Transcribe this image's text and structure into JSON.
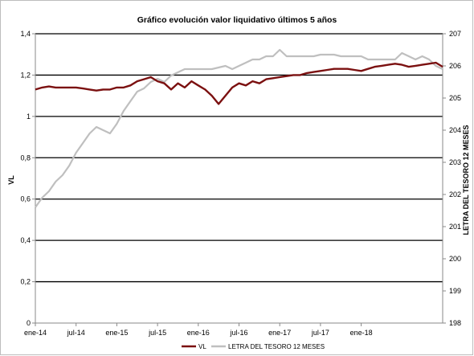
{
  "chart_data": {
    "type": "line",
    "title": "Gráfico evolución valor liquidativo últimos 5 años",
    "ylabel_left": "VL",
    "ylabel_right": "LETRA DEL TESORO 12 MESES",
    "x_tick_labels": [
      "ene-14",
      "jul-14",
      "ene-15",
      "jul-15",
      "ene-16",
      "jul-16",
      "ene-17",
      "jul-17",
      "ene-18"
    ],
    "y_left": {
      "lim": [
        0,
        1.4
      ],
      "ticks": [
        "0",
        "0,2",
        "0,4",
        "0,6",
        "0,8",
        "1",
        "1,2",
        "1,4"
      ]
    },
    "y_right": {
      "lim": [
        198,
        207
      ],
      "ticks": [
        "198",
        "199",
        "200",
        "201",
        "202",
        "203",
        "204",
        "205",
        "206",
        "207"
      ]
    },
    "grid": "horizontal",
    "legend_position": "bottom",
    "colors": {
      "vl": "#7b1010",
      "letra": "#bfbfbf"
    },
    "series": [
      {
        "name": "VL",
        "axis": "left",
        "x": [
          0,
          1,
          2,
          3,
          4,
          5,
          6,
          7,
          8,
          9,
          10,
          11,
          12,
          13,
          14,
          15,
          16,
          17,
          18,
          19,
          20,
          21,
          22,
          23,
          24,
          25,
          26,
          27,
          28,
          29,
          30,
          31,
          32,
          33,
          34,
          35,
          36,
          37,
          38,
          39,
          40,
          41,
          42,
          43,
          44,
          45,
          46,
          47,
          48,
          49,
          50,
          51,
          52,
          53,
          54,
          55,
          56,
          57,
          58,
          59,
          60
        ],
        "values": [
          1.13,
          1.14,
          1.145,
          1.14,
          1.14,
          1.14,
          1.14,
          1.135,
          1.13,
          1.125,
          1.13,
          1.13,
          1.14,
          1.14,
          1.15,
          1.17,
          1.18,
          1.19,
          1.17,
          1.16,
          1.13,
          1.16,
          1.14,
          1.17,
          1.15,
          1.13,
          1.1,
          1.06,
          1.1,
          1.14,
          1.16,
          1.15,
          1.17,
          1.16,
          1.18,
          1.185,
          1.19,
          1.195,
          1.2,
          1.2,
          1.21,
          1.215,
          1.22,
          1.225,
          1.23,
          1.23,
          1.23,
          1.225,
          1.22,
          1.23,
          1.24,
          1.245,
          1.25,
          1.255,
          1.25,
          1.24,
          1.245,
          1.25,
          1.255,
          1.26,
          1.24
        ]
      },
      {
        "name": "LETRA DEL TESORO 12 MESES",
        "axis": "right",
        "x": [
          0,
          1,
          2,
          3,
          4,
          5,
          6,
          7,
          8,
          9,
          10,
          11,
          12,
          13,
          14,
          15,
          16,
          17,
          18,
          19,
          20,
          21,
          22,
          23,
          24,
          25,
          26,
          27,
          28,
          29,
          30,
          31,
          32,
          33,
          34,
          35,
          36,
          37,
          38,
          39,
          40,
          41,
          42,
          43,
          44,
          45,
          46,
          47,
          48,
          49,
          50,
          51,
          52,
          53,
          54,
          55,
          56,
          57,
          58,
          59,
          60
        ],
        "values": [
          201.6,
          201.9,
          202.1,
          202.4,
          202.6,
          202.9,
          203.3,
          203.6,
          203.9,
          204.1,
          204.0,
          203.9,
          204.2,
          204.6,
          204.9,
          205.2,
          205.3,
          205.5,
          205.6,
          205.5,
          205.7,
          205.8,
          205.9,
          205.9,
          205.9,
          205.9,
          205.9,
          205.95,
          206.0,
          205.9,
          206.0,
          206.1,
          206.2,
          206.2,
          206.3,
          206.3,
          206.5,
          206.3,
          206.3,
          206.3,
          206.3,
          206.3,
          206.35,
          206.35,
          206.35,
          206.3,
          206.3,
          206.3,
          206.3,
          206.2,
          206.2,
          206.2,
          206.2,
          206.2,
          206.4,
          206.3,
          206.2,
          206.3,
          206.2,
          206.0,
          205.9
        ]
      }
    ]
  }
}
